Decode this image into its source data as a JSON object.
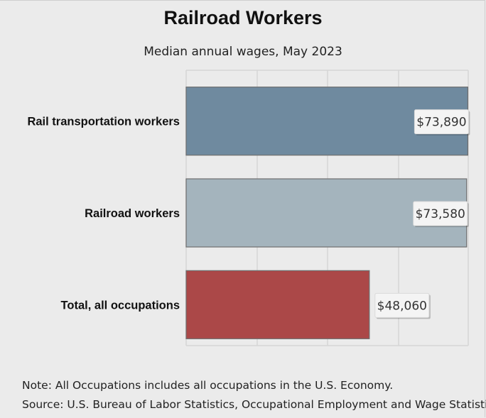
{
  "header": {
    "title": "Railroad Workers",
    "subtitle": "Median annual wages, May 2023"
  },
  "chart_data": {
    "type": "bar",
    "orientation": "horizontal",
    "title": "Railroad Workers",
    "subtitle": "Median annual wages, May 2023",
    "categories": [
      "Rail transportation workers",
      "Railroad workers",
      "Total, all occupations"
    ],
    "values": [
      73890,
      73580,
      48060
    ],
    "data_labels": [
      "$73,890",
      "$73,580",
      "$48,060"
    ],
    "colors": [
      "#6f8a9f",
      "#a4b4bd",
      "#ab4848"
    ],
    "xlim": [
      0,
      74000
    ],
    "grid": true,
    "legend": "none"
  },
  "footer": {
    "note": "Note: All Occupations includes all occupations in the U.S. Economy.",
    "source": "Source: U.S. Bureau of Labor Statistics, Occupational Employment and Wage Statistics"
  }
}
